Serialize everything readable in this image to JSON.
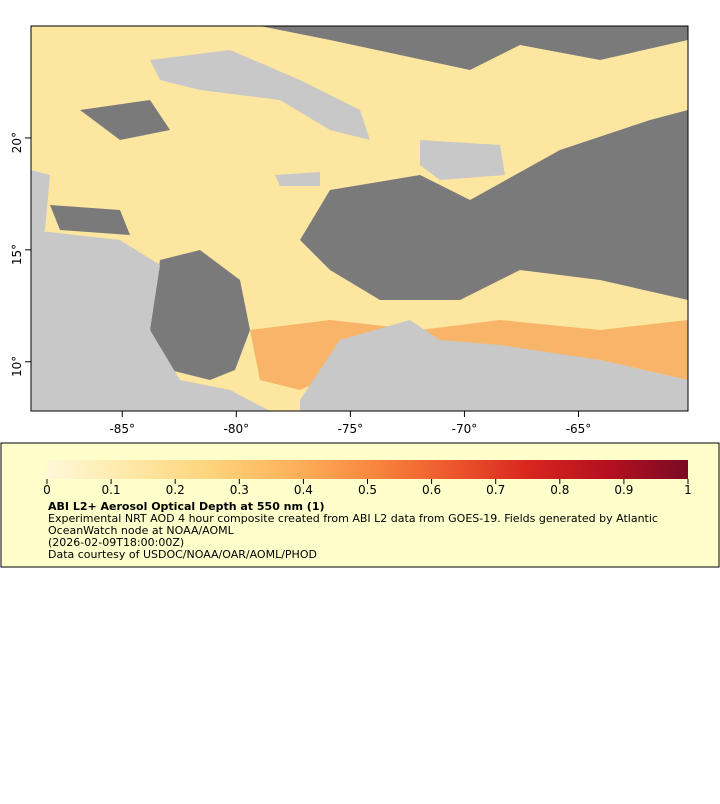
{
  "map": {
    "xlim": [
      -89,
      -60.2
    ],
    "ylim": [
      7.8,
      25
    ],
    "xticks": [
      {
        "value": -85,
        "label": "-85°"
      },
      {
        "value": -80,
        "label": "-80°"
      },
      {
        "value": -75,
        "label": "-75°"
      },
      {
        "value": -70,
        "label": "-70°"
      },
      {
        "value": -65,
        "label": "-65°"
      }
    ],
    "yticks": [
      {
        "value": 10,
        "label": "10°"
      },
      {
        "value": 15,
        "label": "15°"
      },
      {
        "value": 20,
        "label": "20°"
      }
    ]
  },
  "legend": {
    "range": [
      0,
      1
    ],
    "ticks": [
      0,
      0.1,
      0.2,
      0.3,
      0.4,
      0.5,
      0.6,
      0.7,
      0.8,
      0.9,
      1
    ],
    "colors": [
      "#fff8d8",
      "#fee9a8",
      "#fdd57e",
      "#fdb55c",
      "#f98a3f",
      "#ee5a2e",
      "#d9261f",
      "#b5101f",
      "#7a0a25"
    ],
    "title": "ABI L2+ Aerosol Optical Depth at 550 nm (1)",
    "description": [
      "Experimental NRT AOD 4 hour composite created from ABI L2 data from GOES-19. Fields generated by Atlantic",
      "OceanWatch node at NOAA/AOML",
      "(2026-02-09T18:00:00Z)",
      "Data courtesy of USDOC/NOAA/OAR/AOML/PHOD"
    ]
  }
}
